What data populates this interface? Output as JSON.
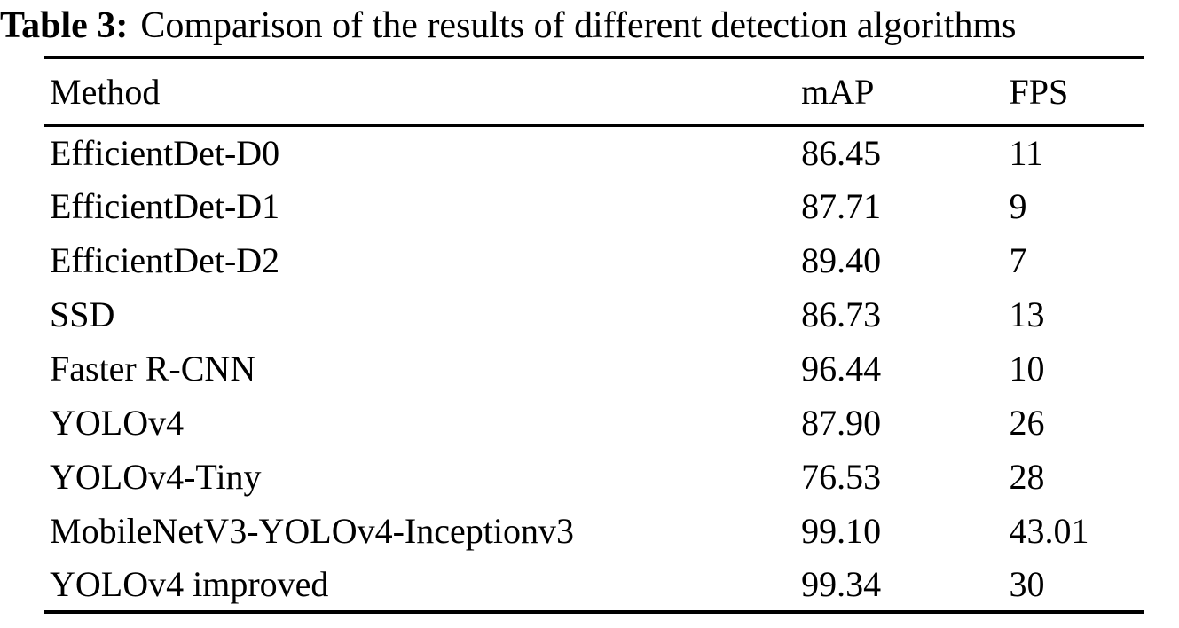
{
  "page": {
    "background_color": "#ffffff",
    "text_color": "#000000"
  },
  "caption": {
    "label": "Table 3:",
    "text": "Comparison of the results of different detection algorithms"
  },
  "table": {
    "columns": [
      "Method",
      "mAP",
      "FPS"
    ],
    "rows": [
      [
        "EfficientDet-D0",
        "86.45",
        "11"
      ],
      [
        "EfficientDet-D1",
        "87.71",
        "9"
      ],
      [
        "EfficientDet-D2",
        "89.40",
        "7"
      ],
      [
        "SSD",
        "86.73",
        "13"
      ],
      [
        "Faster R-CNN",
        "96.44",
        "10"
      ],
      [
        "YOLOv4",
        "87.90",
        "26"
      ],
      [
        "YOLOv4-Tiny",
        "76.53",
        "28"
      ],
      [
        "MobileNetV3-YOLOv4-Inceptionv3",
        "99.10",
        "43.01"
      ],
      [
        "YOLOv4 improved",
        "99.34",
        "30"
      ]
    ]
  }
}
